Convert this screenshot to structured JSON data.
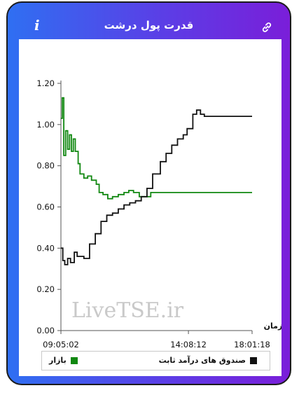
{
  "header": {
    "title": "قدرت پول درشت",
    "info_label": "i"
  },
  "watermark": "LiveTSE.ir",
  "chart_data": {
    "type": "line",
    "xlabel": "زمان",
    "x_ticks": [
      "09:05:02",
      "14:08:12",
      "18:01:18"
    ],
    "ylim": [
      0,
      1.2
    ],
    "y_ticks": [
      "0.00",
      "0.20",
      "0.40",
      "0.60",
      "0.80",
      "1.00",
      "1.20"
    ],
    "legend_position": "bottom",
    "series": [
      {
        "name": "بازار",
        "color": "#118811",
        "points": [
          [
            0,
            1.03
          ],
          [
            0.007,
            1.13
          ],
          [
            0.015,
            0.85
          ],
          [
            0.025,
            0.97
          ],
          [
            0.035,
            0.88
          ],
          [
            0.045,
            0.95
          ],
          [
            0.055,
            0.87
          ],
          [
            0.065,
            0.93
          ],
          [
            0.075,
            0.87
          ],
          [
            0.09,
            0.81
          ],
          [
            0.1,
            0.76
          ],
          [
            0.12,
            0.74
          ],
          [
            0.14,
            0.75
          ],
          [
            0.16,
            0.73
          ],
          [
            0.185,
            0.71
          ],
          [
            0.2,
            0.67
          ],
          [
            0.22,
            0.66
          ],
          [
            0.245,
            0.64
          ],
          [
            0.27,
            0.65
          ],
          [
            0.3,
            0.66
          ],
          [
            0.33,
            0.67
          ],
          [
            0.355,
            0.68
          ],
          [
            0.38,
            0.67
          ],
          [
            0.41,
            0.65
          ],
          [
            0.44,
            0.65
          ],
          [
            0.47,
            0.67
          ],
          [
            1.0,
            0.67
          ]
        ]
      },
      {
        "name": "صندوق های درآمد ثابت",
        "color": "#111111",
        "points": [
          [
            0,
            0.4
          ],
          [
            0.01,
            0.34
          ],
          [
            0.02,
            0.32
          ],
          [
            0.035,
            0.35
          ],
          [
            0.05,
            0.33
          ],
          [
            0.07,
            0.38
          ],
          [
            0.085,
            0.36
          ],
          [
            0.1,
            0.36
          ],
          [
            0.12,
            0.35
          ],
          [
            0.15,
            0.42
          ],
          [
            0.18,
            0.47
          ],
          [
            0.21,
            0.53
          ],
          [
            0.24,
            0.56
          ],
          [
            0.27,
            0.57
          ],
          [
            0.3,
            0.59
          ],
          [
            0.33,
            0.61
          ],
          [
            0.36,
            0.62
          ],
          [
            0.39,
            0.63
          ],
          [
            0.42,
            0.65
          ],
          [
            0.45,
            0.69
          ],
          [
            0.48,
            0.76
          ],
          [
            0.52,
            0.82
          ],
          [
            0.55,
            0.86
          ],
          [
            0.58,
            0.9
          ],
          [
            0.61,
            0.93
          ],
          [
            0.64,
            0.95
          ],
          [
            0.66,
            0.98
          ],
          [
            0.69,
            1.05
          ],
          [
            0.71,
            1.07
          ],
          [
            0.73,
            1.05
          ],
          [
            0.75,
            1.04
          ],
          [
            1.0,
            1.04
          ]
        ]
      }
    ]
  }
}
